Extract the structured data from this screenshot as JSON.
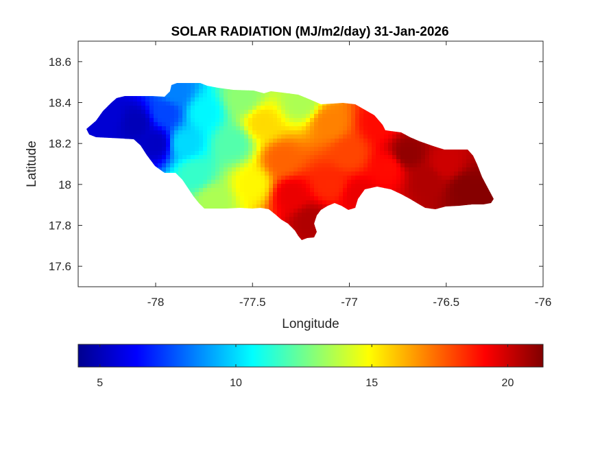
{
  "chart_data": {
    "type": "heatmap",
    "title": "SOLAR RADIATION (MJ/m2/day) 31-Jan-2026",
    "xlabel": "Longitude",
    "ylabel": "Latitude",
    "xlim": [
      -78.4,
      -76
    ],
    "ylim": [
      17.5,
      18.7
    ],
    "xticks": [
      -78,
      -77.5,
      -77,
      -76.5,
      -76
    ],
    "xtick_labels": [
      "-78",
      "-77.5",
      "-77",
      "-76.5",
      "-76"
    ],
    "yticks": [
      17.6,
      17.8,
      18,
      18.2,
      18.4,
      18.6
    ],
    "ytick_labels": [
      "17.6",
      "17.8",
      "18",
      "18.2",
      "18.4",
      "18.6"
    ],
    "colormap": "jet",
    "colorbar": {
      "orientation": "horizontal",
      "location": "below",
      "range": [
        4.2,
        21.3
      ],
      "ticks": [
        5,
        10,
        15,
        20
      ],
      "tick_labels": [
        "5",
        "10",
        "15",
        "20"
      ]
    },
    "grid": false,
    "field_samples": [
      {
        "lon": -78.25,
        "lat": 18.33,
        "value": 5.5
      },
      {
        "lon": -78.1,
        "lat": 18.3,
        "value": 5.0
      },
      {
        "lon": -78.0,
        "lat": 18.2,
        "value": 5.2
      },
      {
        "lon": -77.95,
        "lat": 18.35,
        "value": 7.5
      },
      {
        "lon": -77.9,
        "lat": 18.45,
        "value": 8.5
      },
      {
        "lon": -77.85,
        "lat": 18.2,
        "value": 10.0
      },
      {
        "lon": -77.8,
        "lat": 18.05,
        "value": 11.5
      },
      {
        "lon": -77.75,
        "lat": 18.35,
        "value": 10.5
      },
      {
        "lon": -77.7,
        "lat": 17.92,
        "value": 13.5
      },
      {
        "lon": -77.6,
        "lat": 18.2,
        "value": 12.0
      },
      {
        "lon": -77.55,
        "lat": 18.42,
        "value": 13.0
      },
      {
        "lon": -77.5,
        "lat": 18.0,
        "value": 15.0
      },
      {
        "lon": -77.45,
        "lat": 18.3,
        "value": 15.5
      },
      {
        "lon": -77.35,
        "lat": 18.12,
        "value": 17.5
      },
      {
        "lon": -77.3,
        "lat": 17.95,
        "value": 19.5
      },
      {
        "lon": -77.25,
        "lat": 18.4,
        "value": 13.5
      },
      {
        "lon": -77.2,
        "lat": 17.82,
        "value": 20.5
      },
      {
        "lon": -77.1,
        "lat": 18.0,
        "value": 18.5
      },
      {
        "lon": -77.1,
        "lat": 18.3,
        "value": 17.0
      },
      {
        "lon": -77.0,
        "lat": 18.15,
        "value": 18.0
      },
      {
        "lon": -76.95,
        "lat": 17.95,
        "value": 19.5
      },
      {
        "lon": -76.85,
        "lat": 18.3,
        "value": 19.0
      },
      {
        "lon": -76.8,
        "lat": 18.08,
        "value": 19.0
      },
      {
        "lon": -76.7,
        "lat": 18.15,
        "value": 21.0
      },
      {
        "lon": -76.6,
        "lat": 18.02,
        "value": 20.5
      },
      {
        "lon": -76.5,
        "lat": 18.1,
        "value": 20.0
      },
      {
        "lon": -76.4,
        "lat": 17.98,
        "value": 21.2
      },
      {
        "lon": -76.3,
        "lat": 17.95,
        "value": 21.2
      }
    ]
  }
}
